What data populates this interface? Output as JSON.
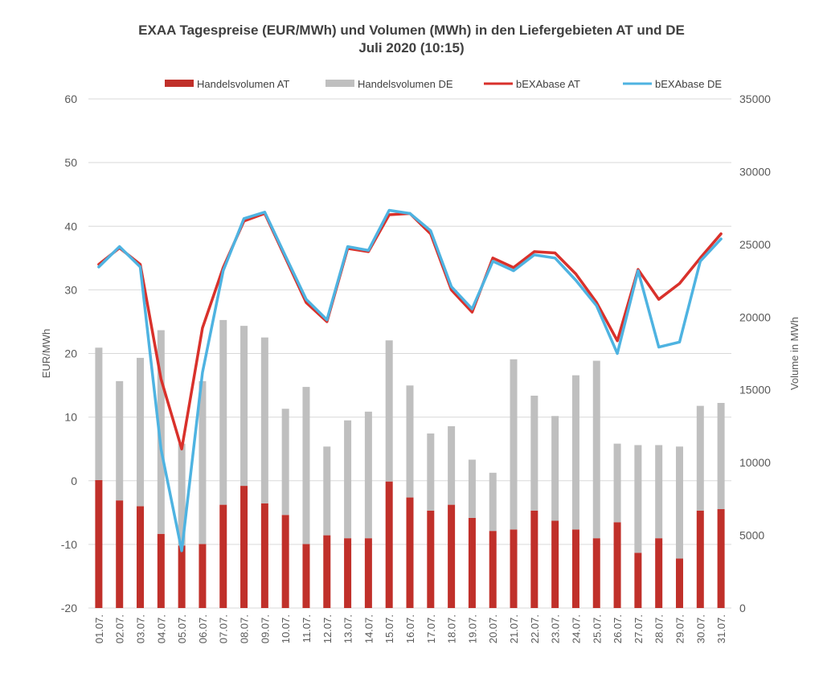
{
  "chart_data": {
    "type": "bar+line",
    "title": "EXAA Tagespreise (EUR/MWh) und Volumen (MWh) in den Liefergebieten AT und DE",
    "subtitle": "Juli 2020 (10:15)",
    "ylabel_left": "EUR/MWh",
    "ylabel_right": "Volume in MWh",
    "ylim_left": [
      -20,
      60
    ],
    "ylim_right": [
      0,
      35000
    ],
    "yticks_left": [
      60,
      50,
      40,
      30,
      20,
      10,
      0,
      -10,
      -20
    ],
    "yticks_right": [
      35000,
      30000,
      25000,
      20000,
      15000,
      10000,
      5000,
      0
    ],
    "legend_position": "top",
    "grid": "horizontal",
    "categories": [
      "01.07.",
      "02.07.",
      "03.07.",
      "04.07.",
      "05.07.",
      "06.07.",
      "07.07.",
      "08.07.",
      "09.07.",
      "10.07.",
      "11.07.",
      "12.07.",
      "13.07.",
      "14.07.",
      "15.07.",
      "16.07.",
      "17.07.",
      "18.07.",
      "19.07.",
      "20.07.",
      "21.07.",
      "22.07.",
      "23.07.",
      "24.07.",
      "25.07.",
      "26.07.",
      "27.07.",
      "28.07.",
      "29.07.",
      "30.07.",
      "31.07."
    ],
    "series": [
      {
        "name": "Handelsvolumen AT",
        "kind": "bar",
        "axis": "right",
        "color": "#c0302a",
        "values": [
          8800,
          7400,
          7000,
          5100,
          4300,
          4400,
          7100,
          8400,
          7200,
          6400,
          4400,
          5000,
          4800,
          4800,
          8700,
          7600,
          6700,
          7100,
          6200,
          5300,
          5400,
          6700,
          6000,
          5400,
          4800,
          5900,
          3800,
          4800,
          3400,
          6700,
          6800
        ]
      },
      {
        "name": "Handelsvolumen DE",
        "kind": "bar",
        "axis": "right",
        "color": "#bfbfbf",
        "values": [
          9100,
          8200,
          10200,
          14000,
          7000,
          11200,
          12700,
          11000,
          11400,
          7300,
          10800,
          6100,
          8100,
          8700,
          9700,
          7700,
          5300,
          5400,
          4000,
          4000,
          11700,
          7900,
          7200,
          10600,
          12200,
          5400,
          7400,
          6400,
          7700,
          7200,
          7300
        ]
      },
      {
        "name": "bEXAbase AT",
        "kind": "line",
        "axis": "left",
        "color": "#d9312b",
        "values": [
          34.0,
          36.6,
          34.0,
          16.0,
          5.0,
          24.0,
          33.5,
          40.8,
          42.0,
          35.0,
          28.0,
          25.0,
          36.5,
          36.0,
          41.8,
          42.0,
          38.8,
          30.0,
          26.5,
          35.0,
          33.5,
          36.0,
          35.8,
          32.5,
          28.0,
          22.0,
          33.2,
          28.5,
          31.0,
          35.0,
          38.8
        ]
      },
      {
        "name": "bEXAbase DE",
        "kind": "line",
        "axis": "left",
        "color": "#4eb3e1",
        "values": [
          33.6,
          36.8,
          33.6,
          5.0,
          -11.0,
          17.0,
          33.0,
          41.2,
          42.2,
          35.3,
          28.5,
          25.3,
          36.8,
          36.2,
          42.5,
          42.0,
          39.3,
          30.5,
          27.0,
          34.5,
          33.0,
          35.5,
          35.0,
          31.5,
          27.5,
          20.0,
          33.0,
          21.0,
          21.8,
          34.5,
          38.0
        ]
      }
    ]
  }
}
